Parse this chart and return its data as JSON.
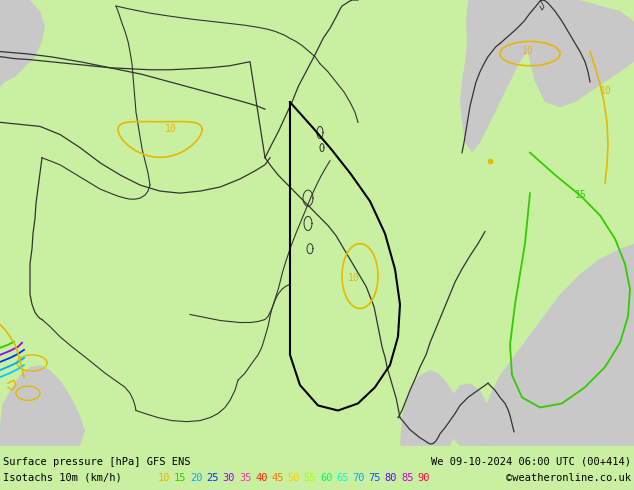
{
  "title_left": "Surface pressure [hPa] GFS ENS",
  "title_right": "We 09-10-2024 06:00 UTC (00+414)",
  "legend_label": "Isotachs 10m (km/h)",
  "legend_values": [
    "10",
    "15",
    "20",
    "25",
    "30",
    "35",
    "40",
    "45",
    "50",
    "55",
    "60",
    "65",
    "70",
    "75",
    "80",
    "85",
    "90"
  ],
  "legend_colors": [
    "#e6b800",
    "#33cc00",
    "#00aaff",
    "#0033ff",
    "#9900ff",
    "#ff33aa",
    "#ff2200",
    "#ff7700",
    "#ffcc00",
    "#aaff00",
    "#00ff55",
    "#00ffcc",
    "#00aaff",
    "#0055ff",
    "#6600ff",
    "#cc00cc",
    "#ff0044"
  ],
  "copyright": "©weatheronline.co.uk",
  "bg_land": "#c8f0a0",
  "bg_sea": "#c8c8c8",
  "bg_sea2": "#d8d8d8",
  "figsize": [
    6.34,
    4.9
  ],
  "dpi": 100,
  "map_extent": [
    28,
    68,
    14,
    42
  ],
  "land_color": "#c8f0a0",
  "sea_color": "#cccccc",
  "border_color": "#333333",
  "contour_color_10": "#e6b800",
  "contour_color_15": "#33cc00"
}
